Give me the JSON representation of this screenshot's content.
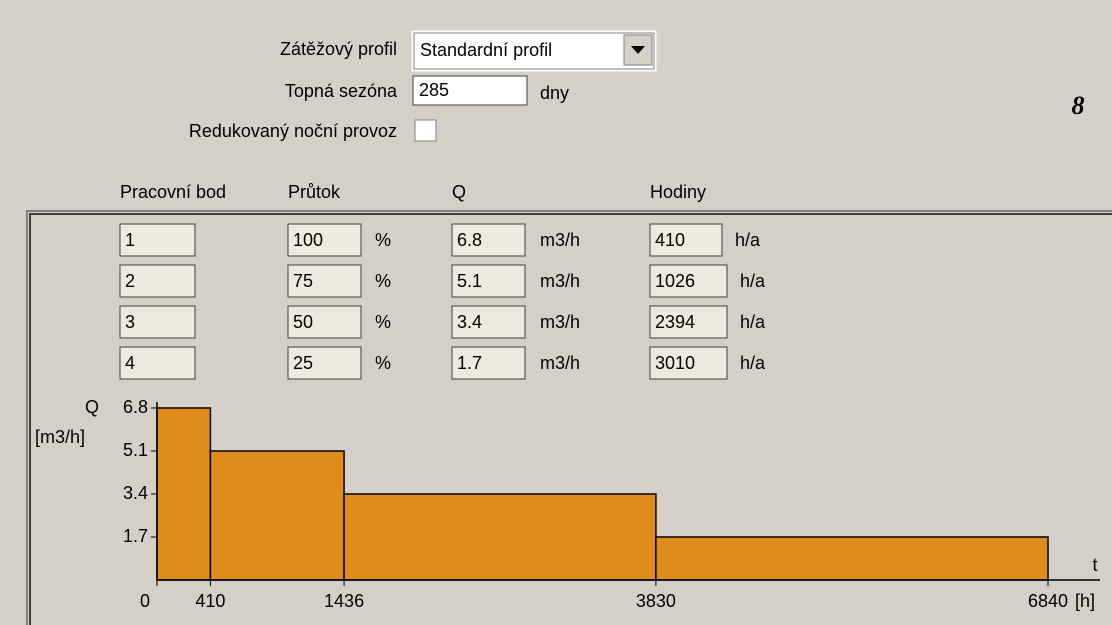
{
  "form": {
    "profile_label": "Zátěžový profil",
    "profile_value": "Standardní profil",
    "season_label": "Topná sezóna",
    "season_value": "285",
    "season_unit": "dny",
    "night_label": "Redukovaný noční provoz",
    "logo": "8"
  },
  "table": {
    "headers": [
      "Pracovní bod",
      "Průtok",
      "Q",
      "Hodiny"
    ],
    "rows": [
      [
        "1",
        "100",
        "%",
        "6.8",
        "m3/h",
        "410",
        "h/a"
      ],
      [
        "2",
        "75",
        "%",
        "5.1",
        "m3/h",
        "1026",
        "h/a"
      ],
      [
        "3",
        "50",
        "%",
        "3.4",
        "m3/h",
        "2394",
        "h/a"
      ],
      [
        "4",
        "25",
        "%",
        "1.7",
        "m3/h",
        "3010",
        "h/a"
      ]
    ]
  },
  "chart_data": {
    "type": "histogram",
    "y_label": "Q",
    "y_unit": "[m3/h]",
    "x_label": "t",
    "x_unit": "[h]",
    "bins": [
      0,
      410,
      1436,
      3830,
      6840
    ],
    "values": [
      6.8,
      5.1,
      3.4,
      1.7
    ],
    "color": "#e08c1a",
    "xlim": [
      0,
      6840
    ],
    "xticks": [
      0,
      410,
      1436,
      3830,
      6840
    ],
    "ylim": [
      0,
      6.8
    ],
    "yticks": [
      1.7,
      3.4,
      5.1,
      6.8
    ]
  }
}
